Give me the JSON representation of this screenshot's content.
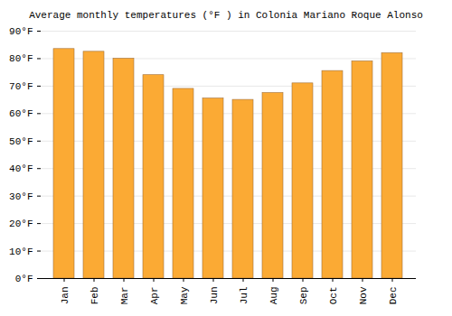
{
  "chart_data": {
    "type": "bar",
    "title": "Average monthly temperatures (°F ) in Colonia Mariano Roque Alonso",
    "categories": [
      "Jan",
      "Feb",
      "Mar",
      "Apr",
      "May",
      "Jun",
      "Jul",
      "Aug",
      "Sep",
      "Oct",
      "Nov",
      "Dec"
    ],
    "values": [
      83.5,
      82.5,
      80,
      74,
      69,
      65.5,
      65,
      67.5,
      71,
      75.5,
      79,
      82
    ],
    "color": "#fbaa34",
    "ylim": [
      0,
      90
    ],
    "yticks": [
      {
        "value": 0,
        "label": "0°F"
      },
      {
        "value": 10,
        "label": "10°F"
      },
      {
        "value": 20,
        "label": "20°F"
      },
      {
        "value": 30,
        "label": "30°F"
      },
      {
        "value": 40,
        "label": "40°F"
      },
      {
        "value": 50,
        "label": "50°F"
      },
      {
        "value": 60,
        "label": "60°F"
      },
      {
        "value": 70,
        "label": "70°F"
      },
      {
        "value": 80,
        "label": "80°F"
      },
      {
        "value": 90,
        "label": "90°F"
      }
    ],
    "grid": true
  }
}
